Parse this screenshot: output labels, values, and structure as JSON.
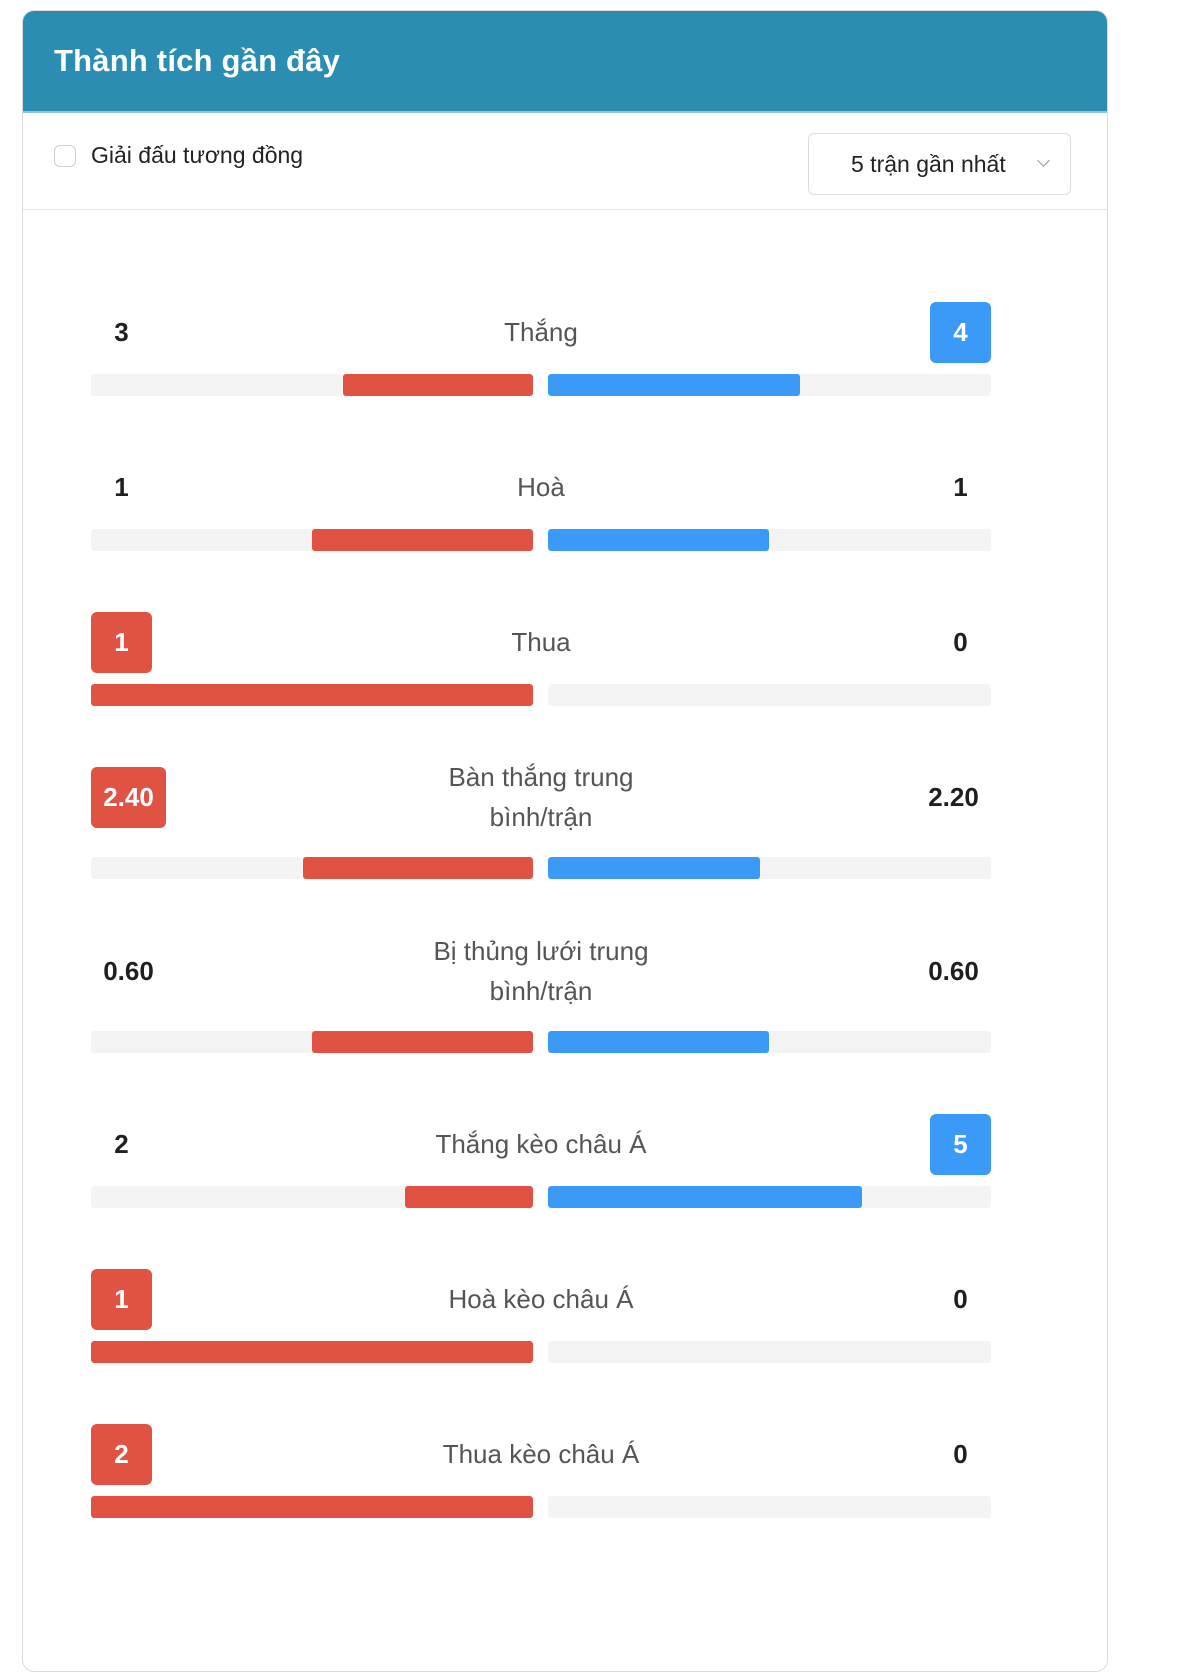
{
  "header": {
    "title": "Thành tích gần đây"
  },
  "filters": {
    "checkbox_label": "Giải đấu tương đồng",
    "checkbox_checked": false,
    "select_value": "5 trận gần nhất"
  },
  "colors": {
    "header_bg": "#2a8db1",
    "home": "#e05241",
    "away": "#3b99f7",
    "track": "#f4f4f4"
  },
  "stats": [
    {
      "label": "Thắng",
      "left": "3",
      "right": "4",
      "left_fraction": 0.43,
      "right_fraction": 0.57,
      "highlight": "right"
    },
    {
      "label": "Hoà",
      "left": "1",
      "right": "1",
      "left_fraction": 0.5,
      "right_fraction": 0.5,
      "highlight": "none"
    },
    {
      "label": "Thua",
      "left": "1",
      "right": "0",
      "left_fraction": 1.0,
      "right_fraction": 0.0,
      "highlight": "left"
    },
    {
      "label": "Bàn thắng trung bình/trận",
      "left": "2.40",
      "right": "2.20",
      "left_fraction": 0.52,
      "right_fraction": 0.48,
      "highlight": "left"
    },
    {
      "label": "Bị thủng lưới trung bình/trận",
      "left": "0.60",
      "right": "0.60",
      "left_fraction": 0.5,
      "right_fraction": 0.5,
      "highlight": "none"
    },
    {
      "label": "Thắng kèo châu Á",
      "left": "2",
      "right": "5",
      "left_fraction": 0.29,
      "right_fraction": 0.71,
      "highlight": "right"
    },
    {
      "label": "Hoà kèo châu Á",
      "left": "1",
      "right": "0",
      "left_fraction": 1.0,
      "right_fraction": 0.0,
      "highlight": "left"
    },
    {
      "label": "Thua kèo châu Á",
      "left": "2",
      "right": "0",
      "left_fraction": 1.0,
      "right_fraction": 0.0,
      "highlight": "left"
    }
  ]
}
